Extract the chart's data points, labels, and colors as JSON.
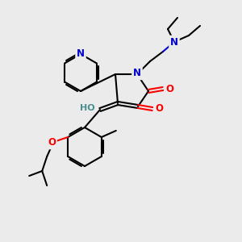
{
  "bg_color": "#ebebeb",
  "atom_colors": {
    "N": "#0000cc",
    "O": "#ff0000",
    "C": "#000000",
    "HO": "#4a9090"
  },
  "figsize": [
    3.0,
    3.0
  ],
  "dpi": 100
}
